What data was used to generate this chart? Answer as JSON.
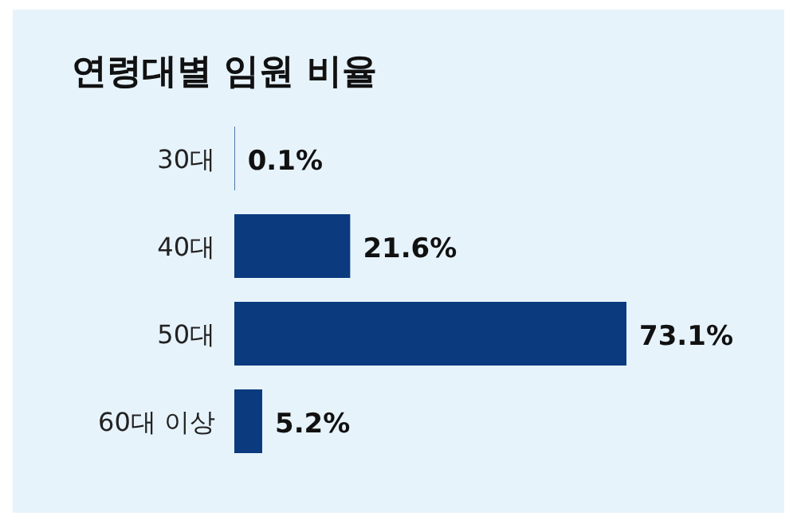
{
  "chart_data": {
    "type": "bar",
    "orientation": "horizontal",
    "title": "연령대별 임원 비율",
    "categories": [
      "30대",
      "40대",
      "50대",
      "60대 이상"
    ],
    "values": [
      0.1,
      21.6,
      73.1,
      5.2
    ],
    "value_labels": [
      "0.1%",
      "21.6%",
      "73.1%",
      "5.2%"
    ],
    "color": "#0b3a7e"
  }
}
